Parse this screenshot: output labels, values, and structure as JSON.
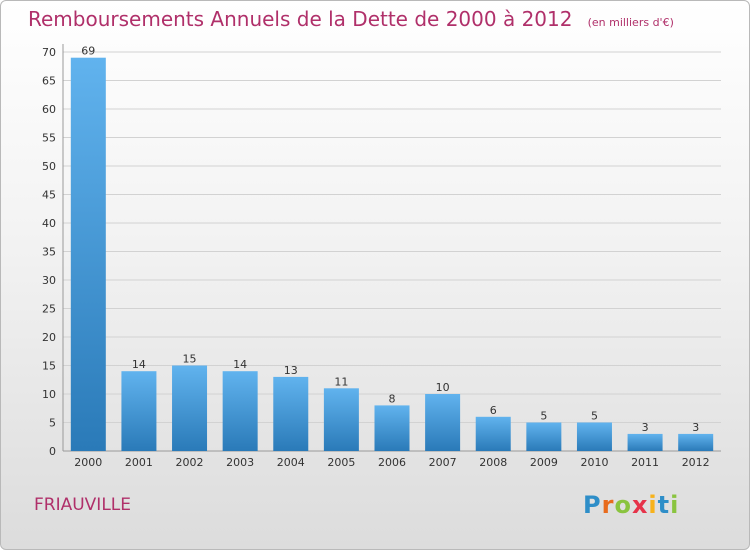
{
  "title": "Remboursements Annuels de la Dette de 2000 à 2012",
  "unit": "(en milliers d'€)",
  "place": "FRIAUVILLE",
  "logo": {
    "letters": [
      "P",
      "r",
      "o",
      "x",
      "i",
      "t",
      "i"
    ],
    "colors": [
      "#2e8ec8",
      "#e86b1d",
      "#8ac43f",
      "#e6334a",
      "#f7b21b",
      "#2e8ec8",
      "#8ac43f"
    ]
  },
  "colors": {
    "title": "#b0306a",
    "bar_light": "#61b3ee",
    "bar_dark": "#2a7ab8"
  },
  "chart_data": {
    "type": "bar",
    "categories": [
      "2000",
      "2001",
      "2002",
      "2003",
      "2004",
      "2005",
      "2006",
      "2007",
      "2008",
      "2009",
      "2010",
      "2011",
      "2012"
    ],
    "values": [
      69,
      14,
      15,
      14,
      13,
      11,
      8,
      10,
      6,
      5,
      5,
      3,
      3
    ],
    "title": "Remboursements Annuels de la Dette de 2000 à 2012",
    "xlabel": "",
    "ylabel": "",
    "ylim": [
      0,
      70
    ],
    "yticks": [
      0,
      5,
      10,
      15,
      20,
      25,
      30,
      35,
      40,
      45,
      50,
      55,
      60,
      65,
      70
    ],
    "grid": true,
    "data_labels": true
  }
}
